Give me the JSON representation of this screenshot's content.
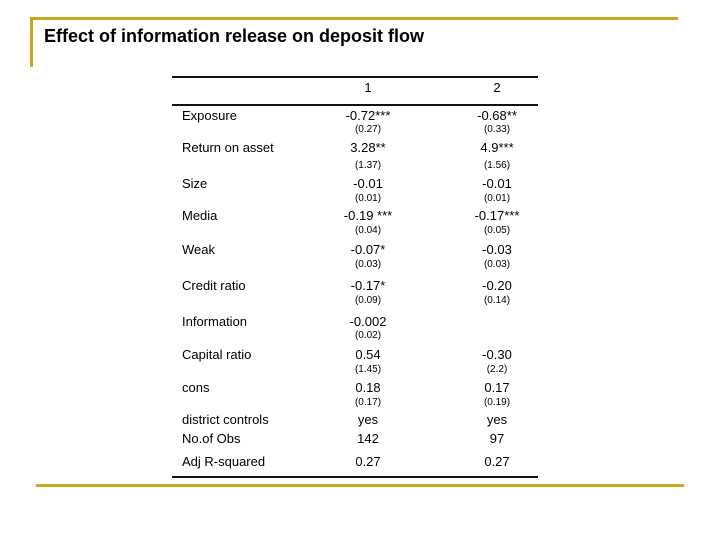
{
  "title": "Effect of information release on deposit flow",
  "columns": [
    "1",
    "2"
  ],
  "rows": [
    {
      "label": "Exposure",
      "c1": "-0.72***",
      "c1_se": "(0.27)",
      "c2": "-0.68**",
      "c2_se": "(0.33)"
    },
    {
      "label": "Return on asset",
      "c1": "3.28**",
      "c1_se": "(1.37)",
      "c2": "4.9***",
      "c2_se": "(1.56)"
    },
    {
      "label": "Size",
      "c1": "-0.01",
      "c1_se": "(0.01)",
      "c2": "-0.01",
      "c2_se": "(0.01)"
    },
    {
      "label": "Media",
      "c1": "-0.19 ***",
      "c1_se": "(0.04)",
      "c2": "-0.17***",
      "c2_se": "(0.05)"
    },
    {
      "label": "Weak",
      "c1": "-0.07*",
      "c1_se": "(0.03)",
      "c2": "-0.03",
      "c2_se": "(0.03)"
    },
    {
      "label": "Credit ratio",
      "c1": "-0.17*",
      "c1_se": "(0.09)",
      "c2": "-0.20",
      "c2_se": "(0.14)"
    },
    {
      "label": "Information",
      "c1": "-0.002",
      "c1_se": "(0.02)",
      "c2": "",
      "c2_se": ""
    },
    {
      "label": "Capital ratio",
      "c1": "0.54",
      "c1_se": "(1.45)",
      "c2": "-0.30",
      "c2_se": "(2.2)"
    },
    {
      "label": "cons",
      "c1": "0.18",
      "c1_se": "(0.17)",
      "c2": "0.17",
      "c2_se": "(0.19)"
    },
    {
      "label": "district controls",
      "c1": "yes",
      "c1_se": "",
      "c2": "yes",
      "c2_se": ""
    },
    {
      "label": "No.of Obs",
      "c1": "142",
      "c1_se": "",
      "c2": "97",
      "c2_se": ""
    },
    {
      "label": "Adj R-squared",
      "c1": "0.27",
      "c1_se": "",
      "c2": "0.27",
      "c2_se": ""
    }
  ],
  "colors": {
    "accent": "#c8a820",
    "rule": "#111111"
  }
}
